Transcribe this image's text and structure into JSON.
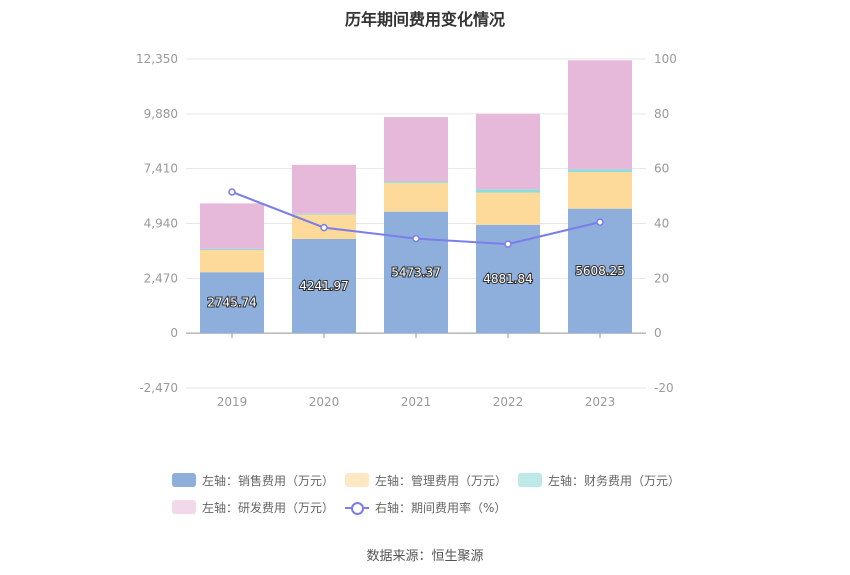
{
  "chart_data": {
    "type": "bar",
    "title": "历年期间费用变化情况",
    "categories": [
      "2019",
      "2020",
      "2021",
      "2022",
      "2023"
    ],
    "left_axis": {
      "ticks": [
        "12,350",
        "9,880",
        "7,410",
        "4,940",
        "2,470",
        "0",
        "-2,470"
      ],
      "ylim": [
        -2470,
        12350
      ]
    },
    "right_axis": {
      "ticks": [
        "100",
        "80",
        "60",
        "40",
        "20",
        "0",
        "-20"
      ],
      "ylim": [
        -20,
        100
      ]
    },
    "series": [
      {
        "name": "左轴：销售费用（万元）",
        "color": "#8eaedb",
        "values": [
          2745.74,
          4241.97,
          5473.37,
          4881.84,
          5608.25
        ],
        "labels": [
          "2745.74",
          "4241.97",
          "5473.37",
          "4881.84",
          "5608.25"
        ]
      },
      {
        "name": "左轴：管理费用（万元）",
        "color": "#fdd99a",
        "values": [
          1000,
          1100,
          1300,
          1450,
          1650
        ]
      },
      {
        "name": "左轴：财务费用（万元）",
        "color": "#8edcdc",
        "values": [
          50,
          40,
          60,
          150,
          130
        ]
      },
      {
        "name": "左轴：研发费用（万元）",
        "color": "#e6b8d9",
        "values": [
          2050,
          2200,
          2900,
          3400,
          4900
        ]
      },
      {
        "name": "右轴：期间费用率（%）",
        "type": "line",
        "axis": "right",
        "color": "#7b7ee8",
        "values": [
          51.5,
          38.5,
          34.5,
          32.5,
          40.5
        ]
      }
    ],
    "grid": true,
    "legend_position": "bottom"
  },
  "source": "数据来源：恒生聚源"
}
